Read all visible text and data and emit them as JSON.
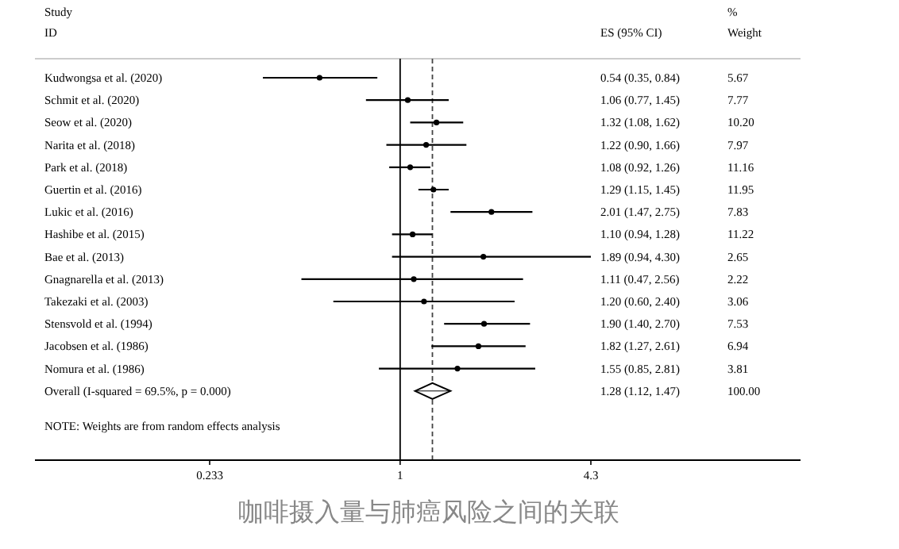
{
  "chart_data": {
    "type": "scatter",
    "orientation": "horizontal",
    "title": "咖啡摄入量与肺癌风险之间的关联",
    "log": "x",
    "xlim": [
      0.233,
      4.3
    ],
    "xticks": [
      0.233,
      1,
      4.3
    ],
    "categories": [
      "Kudwongsa et al. (2020)",
      "Schmit et al. (2020)",
      "Seow et al. (2020)",
      "Narita et al. (2018)",
      "Park et al. (2018)",
      "Guertin et al. (2016)",
      "Lukic et al. (2016)",
      "Hashibe et al. (2015)",
      "Bae et al. (2013)",
      "Gnagnarella et al. (2013)",
      "Takezaki et al. (2003)",
      "Stensvold et al. (1994)",
      "Jacobsen et al. (1986)",
      "Nomura et al. (1986)",
      "Overall  (I-squared = 69.5%, p = 0.000)"
    ],
    "series": [
      {
        "type": "scatter",
        "marker": "circle",
        "color": "#000000",
        "values": [
          0.54,
          1.06,
          1.32,
          1.22,
          1.08,
          1.29,
          2.01,
          1.1,
          1.89,
          1.11,
          1.2,
          1.9,
          1.82,
          1.55,
          null
        ],
        "errors": [
          [
            0.35,
            0.84
          ],
          [
            0.77,
            1.45
          ],
          [
            1.08,
            1.62
          ],
          [
            0.9,
            1.66
          ],
          [
            0.92,
            1.26
          ],
          [
            1.15,
            1.45
          ],
          [
            1.47,
            2.75
          ],
          [
            0.94,
            1.28
          ],
          [
            0.94,
            4.3
          ],
          [
            0.47,
            2.56
          ],
          [
            0.6,
            2.4
          ],
          [
            1.4,
            2.7
          ],
          [
            1.27,
            2.61
          ],
          [
            0.85,
            2.81
          ],
          null
        ],
        "value_labels": [
          "0.54 (0.35, 0.84)",
          "1.06 (0.77, 1.45)",
          "1.32 (1.08, 1.62)",
          "1.22 (0.90, 1.66)",
          "1.08 (0.92, 1.26)",
          "1.29 (1.15, 1.45)",
          "2.01 (1.47, 2.75)",
          "1.10 (0.94, 1.28)",
          "1.89 (0.94, 4.30)",
          "1.11 (0.47, 2.56)",
          "1.20 (0.60, 2.40)",
          "1.90 (1.40, 2.70)",
          "1.82 (1.27, 2.61)",
          "1.55 (0.85, 2.81)",
          null
        ]
      },
      {
        "type": "scatter",
        "marker": "diamond",
        "color": "#000000",
        "values": [
          null,
          null,
          null,
          null,
          null,
          null,
          null,
          null,
          null,
          null,
          null,
          null,
          null,
          null,
          1.28
        ],
        "errors": [
          null,
          null,
          null,
          null,
          null,
          null,
          null,
          null,
          null,
          null,
          null,
          null,
          null,
          null,
          [
            1.12,
            1.47
          ]
        ]
      }
    ],
    "ref_lines": [
      {
        "axis": "x",
        "value": 1,
        "line_style": "solid",
        "color": "#000000"
      },
      {
        "axis": "x",
        "value": 1.28,
        "line_style": "dashed",
        "color": "#444444"
      }
    ],
    "annotations": [
      "Study",
      "ID",
      "ES (95% CI)",
      "%",
      "Weight",
      "NOTE: Weights are from random effects analysis",
      "1.28 (1.12, 1.47)",
      "5.67",
      "7.77",
      "10.20",
      "7.97",
      "11.16",
      "11.95",
      "7.83",
      "11.22",
      "2.65",
      "2.22",
      "3.06",
      "7.53",
      "6.94",
      "3.81",
      "100.00"
    ]
  }
}
